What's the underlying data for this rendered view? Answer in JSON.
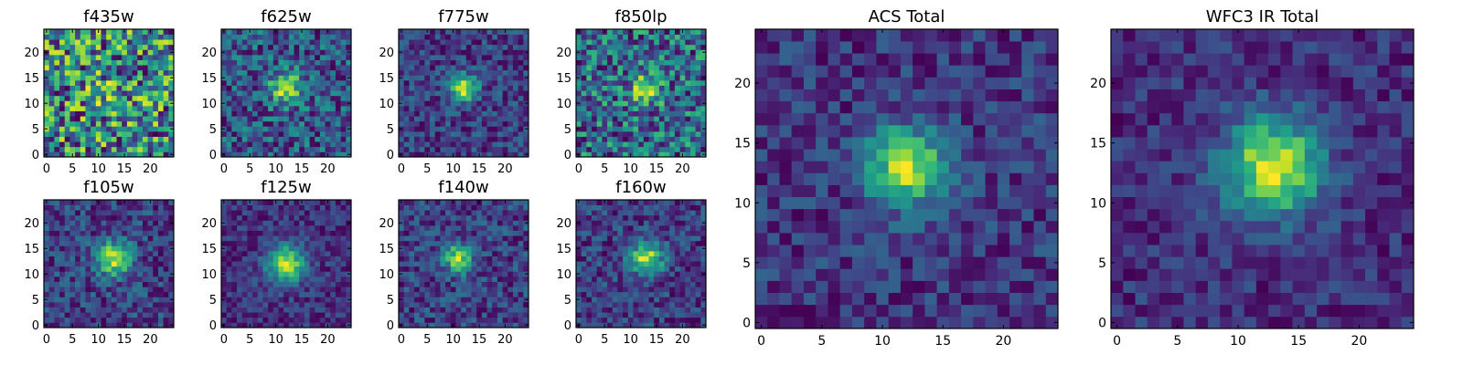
{
  "chart_data": [
    {
      "type": "heatmap",
      "title": "f435w",
      "xticks": [
        "0",
        "5",
        "10",
        "15",
        "20"
      ],
      "yticks": [
        "0",
        "5",
        "10",
        "15",
        "20"
      ],
      "xlim": [
        0,
        25
      ],
      "ylim": [
        0,
        25
      ],
      "grid_size": 25,
      "description_values": "noise",
      "peak": [
        12,
        12
      ],
      "peak_strength": 0.05,
      "peak_sigma": 3.0,
      "noise": 0.42,
      "base": 0.55,
      "seed": 11
    },
    {
      "type": "heatmap",
      "title": "f625w",
      "xticks": [
        "0",
        "5",
        "10",
        "15",
        "20"
      ],
      "yticks": [
        "0",
        "5",
        "10",
        "15",
        "20"
      ],
      "xlim": [
        0,
        25
      ],
      "ylim": [
        0,
        25
      ],
      "grid_size": 25,
      "peak": [
        12,
        13
      ],
      "peak_strength": 0.35,
      "peak_sigma": 2.2,
      "noise": 0.32,
      "base": 0.5,
      "seed": 23
    },
    {
      "type": "heatmap",
      "title": "f775w",
      "xticks": [
        "0",
        "5",
        "10",
        "15",
        "20"
      ],
      "yticks": [
        "0",
        "5",
        "10",
        "15",
        "20"
      ],
      "xlim": [
        0,
        25
      ],
      "ylim": [
        0,
        25
      ],
      "grid_size": 25,
      "peak": [
        12,
        13
      ],
      "peak_strength": 0.55,
      "peak_sigma": 1.8,
      "noise": 0.28,
      "base": 0.45,
      "seed": 37
    },
    {
      "type": "heatmap",
      "title": "f850lp",
      "xticks": [
        "0",
        "5",
        "10",
        "15",
        "20"
      ],
      "yticks": [
        "0",
        "5",
        "10",
        "15",
        "20"
      ],
      "xlim": [
        0,
        25
      ],
      "ylim": [
        0,
        25
      ],
      "grid_size": 25,
      "peak": [
        13,
        13
      ],
      "peak_strength": 0.3,
      "peak_sigma": 2.0,
      "noise": 0.38,
      "base": 0.55,
      "seed": 41
    },
    {
      "type": "heatmap",
      "title": "f105w",
      "xticks": [
        "0",
        "5",
        "10",
        "15",
        "20"
      ],
      "yticks": [
        "0",
        "5",
        "10",
        "15",
        "20"
      ],
      "xlim": [
        0,
        25
      ],
      "ylim": [
        0,
        25
      ],
      "grid_size": 25,
      "peak": [
        13,
        13
      ],
      "peak_strength": 0.45,
      "peak_sigma": 2.4,
      "noise": 0.26,
      "base": 0.5,
      "seed": 53
    },
    {
      "type": "heatmap",
      "title": "f125w",
      "xticks": [
        "0",
        "5",
        "10",
        "15",
        "20"
      ],
      "yticks": [
        "0",
        "5",
        "10",
        "15",
        "20"
      ],
      "xlim": [
        0,
        25
      ],
      "ylim": [
        0,
        25
      ],
      "grid_size": 25,
      "peak": [
        12,
        12
      ],
      "peak_strength": 0.55,
      "peak_sigma": 2.6,
      "noise": 0.22,
      "base": 0.45,
      "seed": 67
    },
    {
      "type": "heatmap",
      "title": "f140w",
      "xticks": [
        "0",
        "5",
        "10",
        "15",
        "20"
      ],
      "yticks": [
        "0",
        "5",
        "10",
        "15",
        "20"
      ],
      "xlim": [
        0,
        25
      ],
      "ylim": [
        0,
        25
      ],
      "grid_size": 25,
      "peak": [
        11,
        13
      ],
      "peak_strength": 0.45,
      "peak_sigma": 2.0,
      "noise": 0.28,
      "base": 0.55,
      "seed": 71
    },
    {
      "type": "heatmap",
      "title": "f160w",
      "xticks": [
        "0",
        "5",
        "10",
        "15",
        "20"
      ],
      "yticks": [
        "0",
        "5",
        "10",
        "15",
        "20"
      ],
      "xlim": [
        0,
        25
      ],
      "ylim": [
        0,
        25
      ],
      "grid_size": 25,
      "peak": [
        13,
        13
      ],
      "peak_strength": 0.5,
      "peak_sigma": 2.2,
      "noise": 0.26,
      "base": 0.5,
      "seed": 83
    },
    {
      "type": "heatmap",
      "title": "ACS Total",
      "xticks": [
        "0",
        "5",
        "10",
        "15",
        "20"
      ],
      "yticks": [
        "0",
        "5",
        "10",
        "15",
        "20"
      ],
      "xlim": [
        0,
        25
      ],
      "ylim": [
        0,
        25
      ],
      "grid_size": 25,
      "peak": [
        12,
        13
      ],
      "peak_strength": 0.55,
      "peak_sigma": 2.3,
      "noise": 0.24,
      "base": 0.48,
      "seed": 97
    },
    {
      "type": "heatmap",
      "title": "WFC3 IR Total",
      "xticks": [
        "0",
        "5",
        "10",
        "15",
        "20"
      ],
      "yticks": [
        "0",
        "5",
        "10",
        "15",
        "20"
      ],
      "xlim": [
        0,
        25
      ],
      "ylim": [
        0,
        25
      ],
      "grid_size": 25,
      "peak": [
        13,
        13
      ],
      "peak_strength": 0.6,
      "peak_sigma": 2.8,
      "noise": 0.2,
      "base": 0.45,
      "seed": 101
    }
  ],
  "colormap": {
    "name": "viridis",
    "stops": [
      "#440154",
      "#482878",
      "#3e4989",
      "#31688e",
      "#26828e",
      "#1f9e89",
      "#35b779",
      "#6ece58",
      "#b5de2b",
      "#fde725"
    ]
  }
}
